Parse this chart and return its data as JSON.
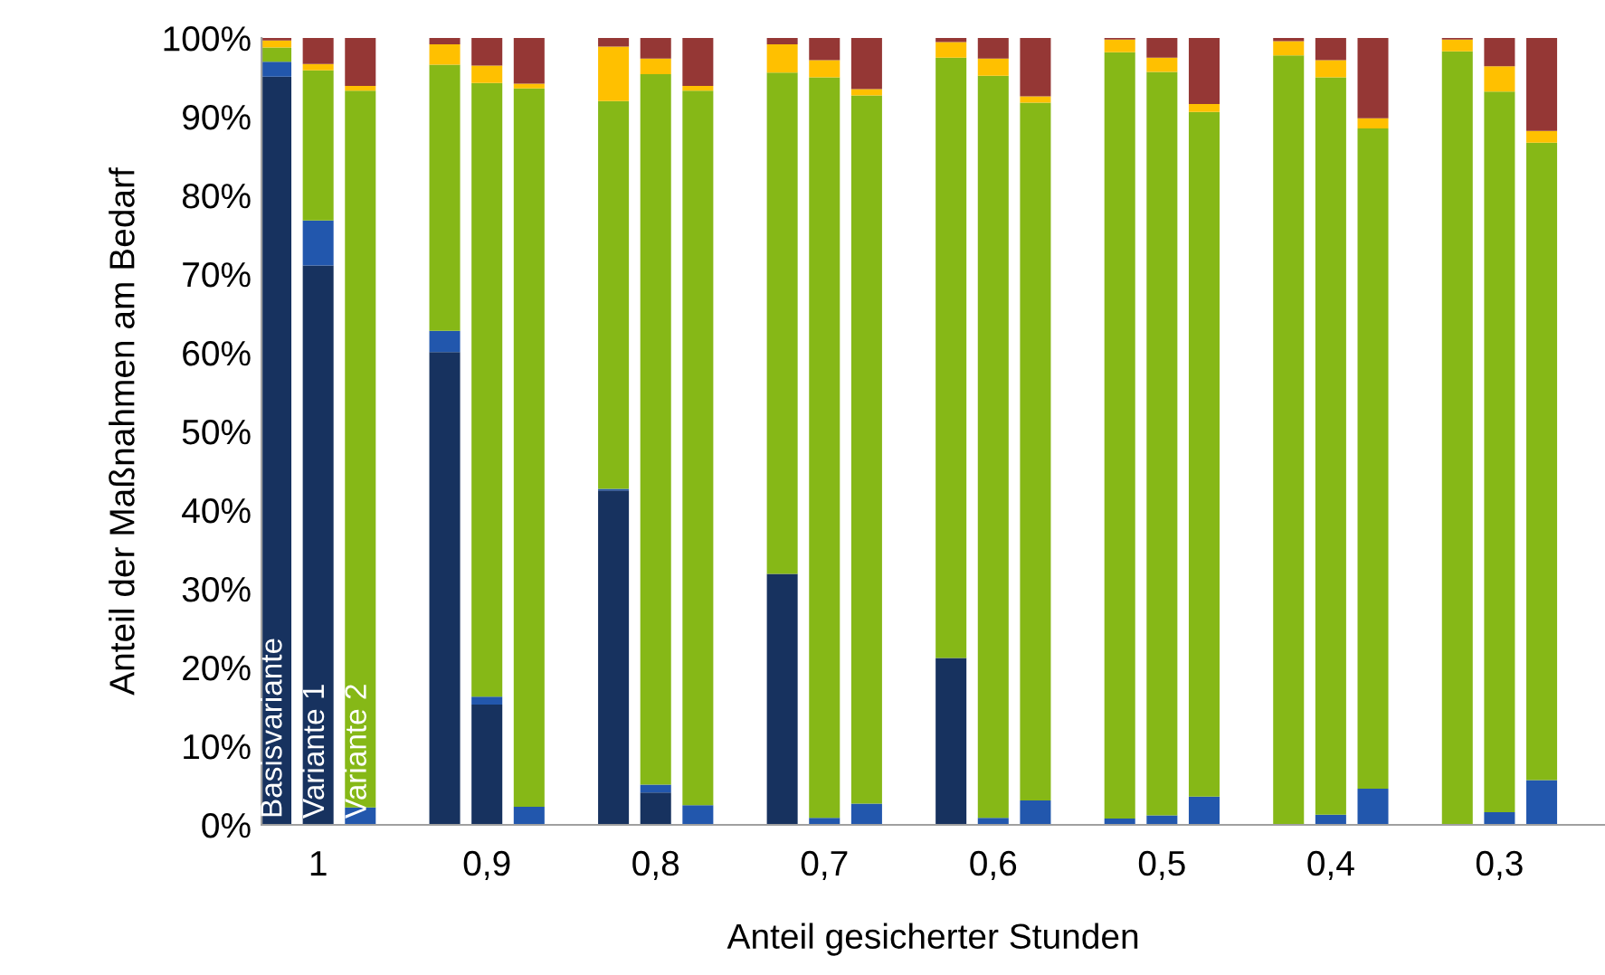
{
  "chart_data": {
    "type": "bar",
    "stacked": true,
    "xlabel": "Anteil gesicherter Stunden",
    "ylabel": "Anteil der Maßnahmen am Bedarf",
    "categories": [
      null,
      "1",
      null,
      null,
      null,
      "0,9",
      null,
      null,
      null,
      "0,8",
      null,
      null,
      null,
      "0,7",
      null,
      null,
      null,
      "0,6",
      null,
      null,
      null,
      "0,5",
      null,
      null,
      null,
      "0,4",
      null,
      null,
      null,
      "0,3",
      null
    ],
    "series": [
      {
        "color": "#17325f",
        "values": [
          95.1,
          71.1,
          0,
          null,
          60.1,
          15.3,
          0,
          null,
          42.5,
          4.1,
          0,
          null,
          31.9,
          0,
          0,
          null,
          21.2,
          0,
          0,
          null,
          0,
          0,
          0,
          null,
          0,
          0,
          0,
          null,
          0,
          0,
          0
        ]
      },
      {
        "color": "#2257ad",
        "values": [
          1.9,
          5.7,
          2.2,
          null,
          2.7,
          1.0,
          2.3,
          null,
          0.2,
          1.0,
          2.5,
          null,
          0,
          0.9,
          2.7,
          null,
          0,
          0.9,
          3.1,
          null,
          0.8,
          1.2,
          3.6,
          null,
          0,
          1.3,
          4.6,
          null,
          0,
          1.6,
          5.7
        ]
      },
      {
        "color": "#86b817",
        "values": [
          1.8,
          19.1,
          91.1,
          null,
          33.8,
          78.0,
          91.3,
          null,
          49.3,
          90.3,
          90.8,
          null,
          63.7,
          94.1,
          90.0,
          null,
          76.3,
          94.3,
          88.7,
          null,
          97.4,
          94.5,
          87.0,
          null,
          97.8,
          93.7,
          83.9,
          null,
          98.3,
          91.6,
          81.0
        ]
      },
      {
        "color": "#ffc000",
        "values": [
          0.9,
          0.8,
          0.6,
          null,
          2.6,
          2.2,
          0.6,
          null,
          6.9,
          2.0,
          0.6,
          null,
          3.6,
          2.2,
          0.8,
          null,
          2.0,
          2.2,
          0.8,
          null,
          1.6,
          1.8,
          1.0,
          null,
          1.8,
          2.2,
          1.3,
          null,
          1.5,
          3.2,
          1.5
        ]
      },
      {
        "color": "#953735",
        "values": [
          0.3,
          3.3,
          6.1,
          null,
          0.8,
          3.5,
          5.8,
          null,
          1.1,
          2.6,
          6.1,
          null,
          0.8,
          2.8,
          6.5,
          null,
          0.5,
          2.6,
          7.4,
          null,
          0.2,
          2.5,
          8.4,
          null,
          0.4,
          2.8,
          10.2,
          null,
          0.2,
          3.6,
          11.8
        ]
      }
    ],
    "ylim": [
      0,
      100
    ],
    "yticks": [
      {
        "value": 0,
        "label": "0%"
      },
      {
        "value": 10,
        "label": "10%"
      },
      {
        "value": 20,
        "label": "20%"
      },
      {
        "value": 30,
        "label": "30%"
      },
      {
        "value": 40,
        "label": "40%"
      },
      {
        "value": 50,
        "label": "50%"
      },
      {
        "value": 60,
        "label": "60%"
      },
      {
        "value": 70,
        "label": "70%"
      },
      {
        "value": 80,
        "label": "80%"
      },
      {
        "value": 90,
        "label": "90%"
      },
      {
        "value": 100,
        "label": "100%"
      }
    ],
    "annotations": [
      "Basisvariante",
      "Variante 1",
      "Variante 2"
    ],
    "grid": false,
    "legend": false
  }
}
